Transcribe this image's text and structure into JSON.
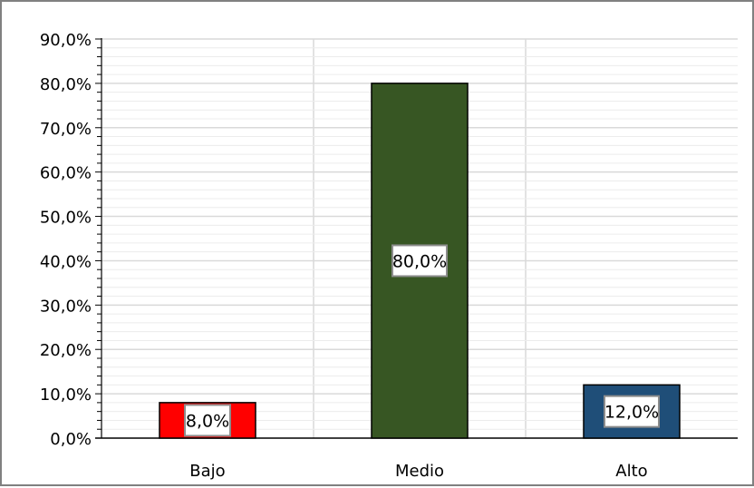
{
  "chart_data": {
    "type": "bar",
    "categories": [
      "Bajo",
      "Medio",
      "Alto"
    ],
    "values": [
      8.0,
      80.0,
      12.0
    ],
    "value_labels": [
      "8,0%",
      "80,0%",
      "12,0%"
    ],
    "bar_colors": [
      "#ff0000",
      "#375623",
      "#1f4e78"
    ],
    "title": "",
    "xlabel": "",
    "ylabel": "",
    "ylim": [
      0,
      90
    ],
    "ytick_values": [
      0,
      10,
      20,
      30,
      40,
      50,
      60,
      70,
      80,
      90
    ],
    "ytick_labels": [
      "0,0%",
      "10,0%",
      "20,0%",
      "30,0%",
      "40,0%",
      "50,0%",
      "60,0%",
      "70,0%",
      "80,0%",
      "90,0%"
    ],
    "grid": true,
    "legend": false
  }
}
